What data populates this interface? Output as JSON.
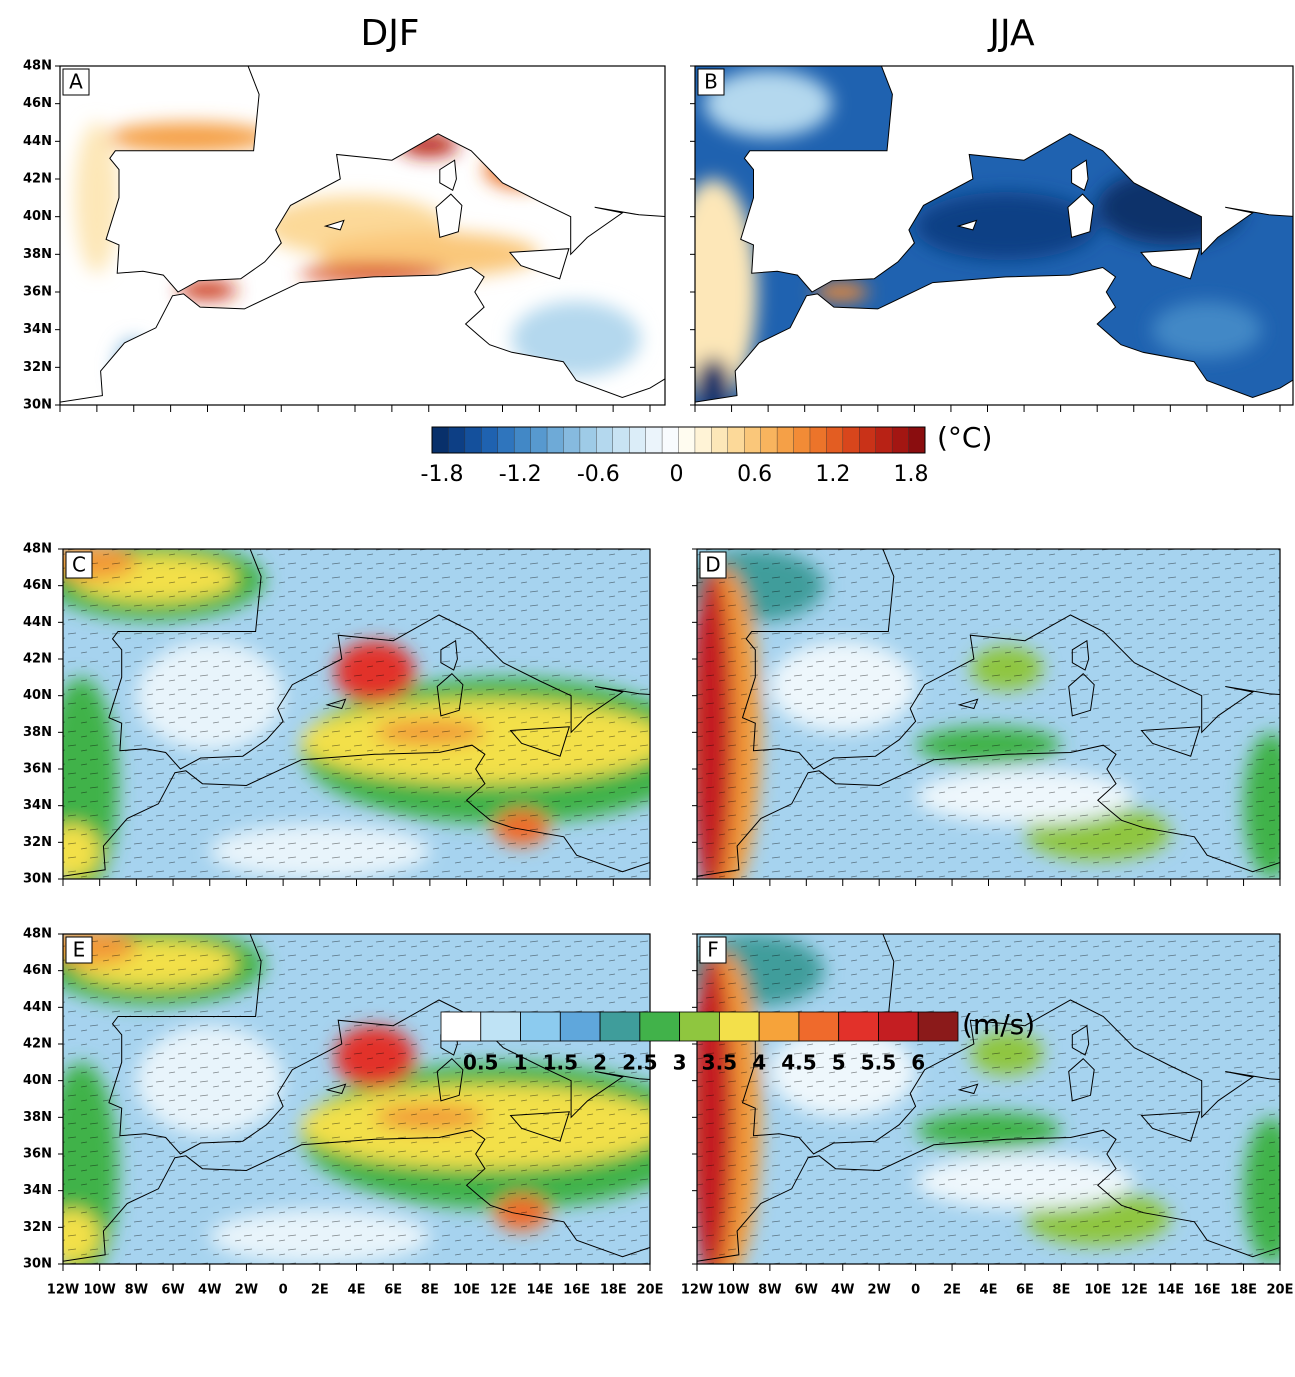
{
  "column_titles": [
    "DJF",
    "JJA"
  ],
  "panel_labels": [
    "A",
    "B",
    "C",
    "D",
    "E",
    "F"
  ],
  "lat_labels": [
    "48N",
    "46N",
    "44N",
    "42N",
    "40N",
    "38N",
    "36N",
    "34N",
    "32N",
    "30N"
  ],
  "lon_labels": [
    "12W",
    "10W",
    "8W",
    "6W",
    "4W",
    "2W",
    "0",
    "2E",
    "4E",
    "6E",
    "8E",
    "10E",
    "12E",
    "14E",
    "16E",
    "18E",
    "20E"
  ],
  "temperature_colorbar": {
    "unit": "(°C)",
    "ticks": [
      -1.8,
      -1.2,
      -0.6,
      0,
      0.6,
      1.2,
      1.8
    ],
    "colors": [
      "#08306b",
      "#0d3f85",
      "#14509c",
      "#1f62b0",
      "#2f75bd",
      "#4288c6",
      "#5799cf",
      "#6eaad7",
      "#86badf",
      "#9ecbe7",
      "#b4d8ee",
      "#c8e3f3",
      "#dbedf8",
      "#ebf4fb",
      "#f8fbfe",
      "#fffcf0",
      "#fff3d6",
      "#fde7b8",
      "#fcd999",
      "#fac77a",
      "#f8b45e",
      "#f5a047",
      "#f28b36",
      "#ec742a",
      "#e35d22",
      "#d8461c",
      "#c93218",
      "#b82215",
      "#a31612",
      "#8a0d0f"
    ]
  },
  "wind_colorbar": {
    "unit": "(m/s)",
    "ticks": [
      0.5,
      1,
      1.5,
      2,
      2.5,
      3,
      3.5,
      4,
      4.5,
      5,
      5.5,
      6
    ],
    "colors": [
      "#ffffff",
      "#bfe3f5",
      "#8ccbef",
      "#5fa7dc",
      "#3f9d9b",
      "#41b24a",
      "#8fc63f",
      "#f3e04a",
      "#f6a33a",
      "#ef6a2c",
      "#e2312a",
      "#c41e22",
      "#8b1a1a"
    ]
  }
}
